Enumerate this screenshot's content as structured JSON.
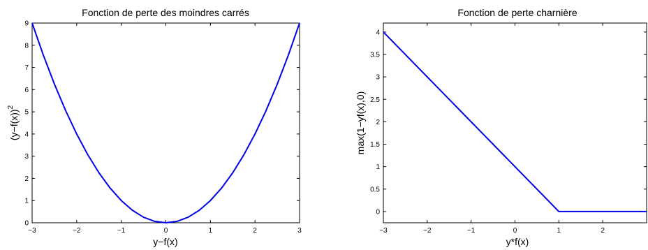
{
  "chart_data": [
    {
      "type": "line",
      "title": "Fonction de perte des moindres carrés",
      "xlabel": "y−f(x)",
      "ylabel": "(y−f(x))",
      "ylabel_superscript": "2",
      "xlim": [
        -3,
        3
      ],
      "ylim": [
        0,
        9
      ],
      "xticks": [
        -3,
        -2,
        -1,
        0,
        1,
        2,
        3
      ],
      "xtick_labels": [
        "−3",
        "−2",
        "−1",
        "0",
        "1",
        "2",
        "3"
      ],
      "yticks": [
        0,
        1,
        2,
        3,
        4,
        5,
        6,
        7,
        8,
        9
      ],
      "ytick_labels": [
        "0",
        "1",
        "2",
        "3",
        "4",
        "5",
        "6",
        "7",
        "8",
        "9"
      ],
      "grid": false,
      "series": [
        {
          "color": "#0000e6",
          "x": [
            -3,
            -2.75,
            -2.5,
            -2.25,
            -2,
            -1.75,
            -1.5,
            -1.25,
            -1,
            -0.75,
            -0.5,
            -0.25,
            0,
            0.25,
            0.5,
            0.75,
            1,
            1.25,
            1.5,
            1.75,
            2,
            2.25,
            2.5,
            2.75,
            3
          ],
          "y": [
            9,
            7.5625,
            6.25,
            5.0625,
            4,
            3.0625,
            2.25,
            1.5625,
            1,
            0.5625,
            0.25,
            0.0625,
            0,
            0.0625,
            0.25,
            0.5625,
            1,
            1.5625,
            2.25,
            3.0625,
            4,
            5.0625,
            6.25,
            7.5625,
            9
          ]
        }
      ]
    },
    {
      "type": "line",
      "title": "Fonction de perte charnière",
      "xlabel": "y*f(x)",
      "ylabel": "max(1−yf(x),0)",
      "xlim": [
        -3,
        3
      ],
      "ylim": [
        -0.25,
        4.2
      ],
      "xticks": [
        -3,
        -2,
        -1,
        0,
        1,
        2
      ],
      "xtick_labels": [
        "−3",
        "−2",
        "−1",
        "0",
        "1",
        "2"
      ],
      "yticks": [
        0,
        0.5,
        1,
        1.5,
        2,
        2.5,
        3,
        3.5,
        4
      ],
      "ytick_labels": [
        "0",
        "0.5",
        "1",
        "1.5",
        "2",
        "2.5",
        "3",
        "3.5",
        "4"
      ],
      "grid": false,
      "series": [
        {
          "color": "#0000e6",
          "x": [
            -3,
            1,
            3
          ],
          "y": [
            4,
            0,
            0
          ]
        }
      ]
    }
  ]
}
